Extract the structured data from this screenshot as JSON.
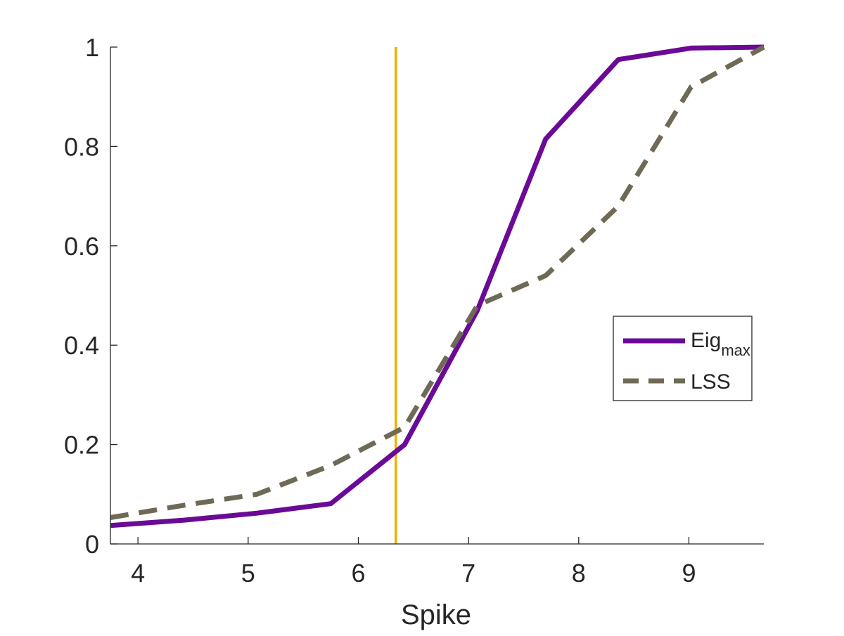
{
  "chart_data": {
    "type": "line",
    "xlabel": "Spike",
    "ylabel": "",
    "title": "",
    "xlim": [
      3.75,
      9.68
    ],
    "ylim": [
      0,
      1
    ],
    "xticks": [
      4,
      5,
      6,
      7,
      8,
      9
    ],
    "xtick_labels": [
      "4",
      "5",
      "6",
      "7",
      "8",
      "9"
    ],
    "yticks": [
      0,
      0.2,
      0.4,
      0.6,
      0.8,
      1
    ],
    "ytick_labels": [
      "0",
      "0.2",
      "0.4",
      "0.6",
      "0.8",
      "1"
    ],
    "grid": false,
    "legend_position": "right",
    "series": [
      {
        "name": "Eig",
        "name_subscript": "max",
        "color": "#6a0a96",
        "style": "solid",
        "x": [
          3.75,
          4.42,
          5.08,
          5.75,
          6.42,
          7.08,
          7.7,
          8.36,
          9.02,
          9.68
        ],
        "y": [
          0.037,
          0.048,
          0.062,
          0.081,
          0.2,
          0.47,
          0.815,
          0.975,
          0.998,
          1.0
        ]
      },
      {
        "name": "LSS",
        "color": "#6e6a55",
        "style": "dashed",
        "x": [
          3.75,
          4.42,
          5.08,
          5.75,
          6.42,
          7.08,
          7.7,
          8.36,
          9.02,
          9.68
        ],
        "y": [
          0.053,
          0.078,
          0.1,
          0.158,
          0.235,
          0.48,
          0.54,
          0.68,
          0.92,
          1.0
        ]
      }
    ],
    "reference_line": {
      "axis": "x",
      "value": 6.34,
      "color": "#f0b000"
    }
  }
}
